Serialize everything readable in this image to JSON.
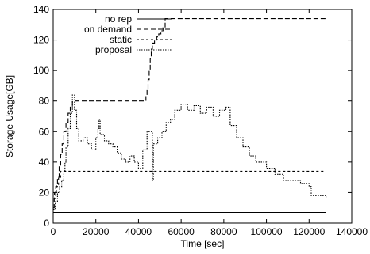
{
  "chart_data": {
    "type": "line",
    "title": "",
    "xlabel": "Time [sec]",
    "ylabel": "Storage Usage[GB]",
    "xlim": [
      0,
      140000
    ],
    "ylim": [
      0,
      140
    ],
    "xticks": [
      0,
      20000,
      40000,
      60000,
      80000,
      100000,
      120000,
      140000
    ],
    "yticks": [
      0,
      20,
      40,
      60,
      80,
      100,
      120,
      140
    ],
    "xtick_labels": [
      "0",
      "20000",
      "40000",
      "60000",
      "80000",
      "100000",
      "120000",
      "140000"
    ],
    "ytick_labels": [
      "0",
      "20",
      "40",
      "60",
      "80",
      "100",
      "120",
      "140"
    ],
    "grid": false,
    "legend_position": "top-left",
    "series": [
      {
        "name": "no rep",
        "dash": "",
        "points": [
          [
            0,
            7
          ],
          [
            128000,
            7
          ]
        ]
      },
      {
        "name": "on demand",
        "dash": "6,3",
        "points": [
          [
            0,
            10
          ],
          [
            500,
            16
          ],
          [
            1200,
            24
          ],
          [
            2000,
            30
          ],
          [
            2800,
            38
          ],
          [
            3500,
            45
          ],
          [
            4200,
            52
          ],
          [
            5000,
            60
          ],
          [
            6000,
            66
          ],
          [
            7000,
            72
          ],
          [
            8000,
            76
          ],
          [
            9000,
            80
          ],
          [
            43000,
            80
          ],
          [
            43500,
            84
          ],
          [
            44000,
            88
          ],
          [
            44500,
            94
          ],
          [
            45000,
            100
          ],
          [
            45500,
            108
          ],
          [
            46000,
            114
          ],
          [
            46500,
            118
          ],
          [
            47500,
            120
          ],
          [
            48500,
            122
          ],
          [
            49500,
            124
          ],
          [
            50500,
            126
          ],
          [
            51500,
            128
          ],
          [
            52500,
            134
          ],
          [
            128000,
            134
          ]
        ]
      },
      {
        "name": "static",
        "dash": "3,3",
        "points": [
          [
            0,
            16
          ],
          [
            600,
            20
          ],
          [
            1500,
            25
          ],
          [
            2500,
            30
          ],
          [
            3500,
            34
          ],
          [
            128000,
            34
          ]
        ]
      },
      {
        "name": "proposal",
        "dash": "1.5,1.5",
        "points": [
          [
            0,
            9
          ],
          [
            1000,
            14
          ],
          [
            2000,
            20
          ],
          [
            3000,
            24
          ],
          [
            4000,
            28
          ],
          [
            5000,
            34
          ],
          [
            5500,
            40
          ],
          [
            6000,
            50
          ],
          [
            7000,
            62
          ],
          [
            8000,
            72
          ],
          [
            9000,
            84
          ],
          [
            10000,
            74
          ],
          [
            11000,
            62
          ],
          [
            12000,
            54
          ],
          [
            14000,
            56
          ],
          [
            16000,
            52
          ],
          [
            18000,
            48
          ],
          [
            20000,
            56
          ],
          [
            21000,
            62
          ],
          [
            21500,
            68
          ],
          [
            22000,
            58
          ],
          [
            24000,
            54
          ],
          [
            26000,
            52
          ],
          [
            28000,
            50
          ],
          [
            30000,
            46
          ],
          [
            32000,
            42
          ],
          [
            34000,
            40
          ],
          [
            36000,
            44
          ],
          [
            38000,
            40
          ],
          [
            40000,
            36
          ],
          [
            42000,
            48
          ],
          [
            44000,
            60
          ],
          [
            46000,
            60
          ],
          [
            46500,
            28
          ],
          [
            47000,
            52
          ],
          [
            49000,
            56
          ],
          [
            51000,
            60
          ],
          [
            53000,
            66
          ],
          [
            55000,
            68
          ],
          [
            57000,
            74
          ],
          [
            60000,
            78
          ],
          [
            63000,
            74
          ],
          [
            66000,
            77
          ],
          [
            69000,
            72
          ],
          [
            72000,
            76
          ],
          [
            75000,
            70
          ],
          [
            78000,
            74
          ],
          [
            81000,
            76
          ],
          [
            83000,
            64
          ],
          [
            86000,
            56
          ],
          [
            89000,
            50
          ],
          [
            92000,
            44
          ],
          [
            95000,
            40
          ],
          [
            100000,
            36
          ],
          [
            104000,
            32
          ],
          [
            108000,
            28
          ],
          [
            116000,
            26
          ],
          [
            120000,
            24
          ],
          [
            121000,
            18
          ],
          [
            128000,
            17
          ]
        ]
      }
    ]
  }
}
